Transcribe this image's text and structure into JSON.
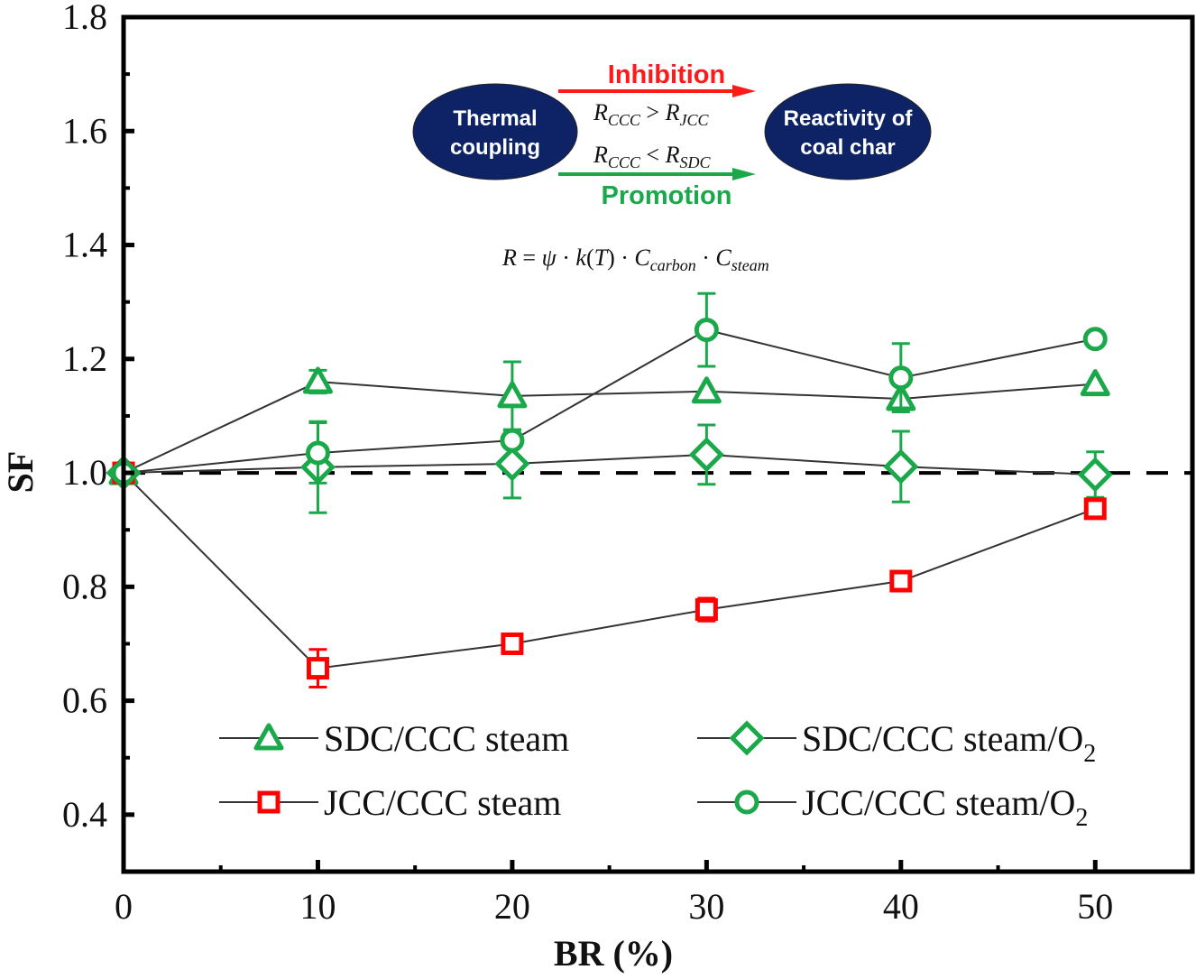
{
  "chart_data": {
    "type": "line",
    "title": "",
    "xlabel": "BR (%)",
    "ylabel": "SF",
    "xlim": [
      0,
      55
    ],
    "ylim": [
      0.3,
      1.8
    ],
    "xticks": [
      0,
      10,
      20,
      30,
      40,
      50
    ],
    "xtick_labels": [
      "0",
      "10",
      "20",
      "30",
      "40",
      "50"
    ],
    "x_minor_ticks": [
      5,
      15,
      25,
      35,
      45
    ],
    "yticks": [
      0.4,
      0.6,
      0.8,
      1.0,
      1.2,
      1.4,
      1.6,
      1.8
    ],
    "ytick_labels": [
      "0.4",
      "0.6",
      "0.8",
      "1.0",
      "1.2",
      "1.4",
      "1.6",
      "1.8"
    ],
    "y_minor_ticks": [
      0.3,
      0.5,
      0.7,
      0.9,
      1.1,
      1.3,
      1.5,
      1.7
    ],
    "grid": false,
    "reference_line": {
      "y": 1.0,
      "style": "dashed",
      "color": "#000000"
    },
    "x": [
      0,
      10,
      20,
      30,
      40,
      50
    ],
    "series": [
      {
        "name": "SDC/CCC steam",
        "marker": "triangle",
        "color": "#1aa84a",
        "values": [
          1.0,
          1.16,
          1.135,
          1.143,
          1.13,
          1.156
        ],
        "errors": [
          0,
          0.02,
          0.06,
          0.0,
          0.0,
          0.0
        ]
      },
      {
        "name": "SDC/CCC steam/O2",
        "marker": "diamond",
        "color": "#1aa84a",
        "values": [
          1.0,
          1.01,
          1.016,
          1.032,
          1.011,
          0.997
        ],
        "errors": [
          0,
          0.08,
          0.06,
          0.052,
          0.062,
          0.04
        ]
      },
      {
        "name": "JCC/CCC steam",
        "marker": "square",
        "color": "#ff0000",
        "values": [
          1.0,
          0.657,
          0.7,
          0.76,
          0.81,
          0.937
        ],
        "errors": [
          0,
          0.033,
          0.0,
          0.02,
          0.0,
          0.0
        ]
      },
      {
        "name": "JCC/CCC steam/O2",
        "marker": "circle",
        "color": "#1aa84a",
        "values": [
          1.0,
          1.035,
          1.057,
          1.251,
          1.167,
          1.235
        ],
        "errors": [
          0,
          0.053,
          0.0,
          0.064,
          0.06,
          0.012
        ]
      }
    ],
    "legend": {
      "placement": "bottom",
      "entries": [
        {
          "label": "SDC/CCC steam",
          "marker": "triangle",
          "color": "#1aa84a"
        },
        {
          "label": "SDC/CCC steam/O",
          "sub": "2",
          "marker": "diamond",
          "color": "#1aa84a"
        },
        {
          "label": "JCC/CCC  steam",
          "marker": "square",
          "color": "#ff0000"
        },
        {
          "label": "JCC/CCC  steam/O",
          "sub": "2",
          "marker": "circle",
          "color": "#1aa84a"
        }
      ]
    },
    "annotation": {
      "left_node": {
        "line1": "Thermal",
        "line2": "coupling"
      },
      "right_node": {
        "line1": "Reactivity of",
        "line2": "coal char"
      },
      "node_color": "#0d2366",
      "inhibition": {
        "label": "Inhibition",
        "color": "#ff1a1a",
        "relation": "R_CCC > R_JCC"
      },
      "promotion": {
        "label": "Promotion",
        "color": "#1aa84a",
        "relation": "R_CCC < R_SDC"
      },
      "equation": "R = ψ · k(T) · C_carbon · C_steam"
    }
  }
}
